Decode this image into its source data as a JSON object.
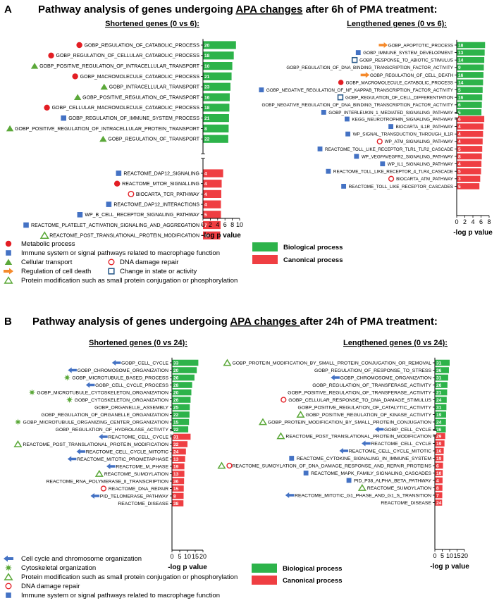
{
  "colors": {
    "bio": "#2DB34A",
    "can": "#EF3E42",
    "red": "#E31E24",
    "blue": "#4472C4",
    "green": "#5BA839",
    "orange": "#F58A2C",
    "navy": "#2A5A8A"
  },
  "panelA": {
    "letter": "A",
    "title_pre": "Pathway analysis of genes undergoing ",
    "title_ul": "APA changes",
    "title_post": " after 6h of PMA treatment:",
    "legend": [
      {
        "marker": "dot",
        "text": "Metabolic process"
      },
      {
        "marker": "sqblue",
        "text": "Immune system or signal pathways related to macrophage function"
      },
      {
        "marker": "tri",
        "text": "Cellular transport"
      },
      {
        "marker": "circ",
        "text": "DNA damage repair"
      },
      {
        "marker": "arrow",
        "text": "Regulation of cell death"
      },
      {
        "marker": "sqopen",
        "text": "Change in state or activity"
      },
      {
        "marker": "tricopen",
        "text": "Protein modification such as small protein conjugation or phosphorylation"
      }
    ],
    "box_legend": [
      {
        "color": "#2DB34A",
        "text": "Biological process"
      },
      {
        "color": "#EF3E42",
        "text": "Canonical process"
      }
    ]
  },
  "panelB": {
    "letter": "B",
    "title_pre": "Pathway analysis of genes undergoing ",
    "title_ul": "APA changes ",
    "title_post": "after 24h of PMA treatment:",
    "legend": [
      {
        "marker": "arrowblue",
        "text": "Cell cycle and chromosome organization"
      },
      {
        "marker": "star",
        "text": "Cytoskeletal organization"
      },
      {
        "marker": "tricopen",
        "text": "Protein modification such as small protein conjugation or phosphorylation"
      },
      {
        "marker": "circ",
        "text": "DNA damage repair"
      },
      {
        "marker": "sqblue",
        "text": "Immune system or signal pathways related to macrophage function"
      }
    ],
    "box_legend": [
      {
        "color": "#2DB34A",
        "text": "Biological process"
      },
      {
        "color": "#EF3E42",
        "text": "Canonical process"
      }
    ]
  },
  "chart_data": [
    {
      "type": "bar",
      "orientation": "horizontal",
      "title": "Shortened genes (0 vs 6):",
      "xlabel": "-log p value",
      "xlim": [
        0,
        10
      ],
      "ticks": [
        0,
        2,
        4,
        6,
        8,
        10
      ],
      "bio": [
        {
          "label": "GOBP_REGULATION_OF_CATABOLIC_PROCESS",
          "value": 9.0,
          "count": "20",
          "marker": "dot"
        },
        {
          "label": "GOBP_REGULATION_OF_CELLULAR_CATABOLIC_PROCESS",
          "value": 8.4,
          "count": "18",
          "marker": "dot"
        },
        {
          "label": "GOBP_POSITIVE_REGULATION_OF_INTRACELLULAR_TRANSPORT",
          "value": 8.0,
          "count": "10",
          "marker": "tri"
        },
        {
          "label": "GOBP_MACROMOLECULE_CATABOLIC_PROCESS",
          "value": 7.8,
          "count": "21",
          "marker": "dot"
        },
        {
          "label": "GOBP_INTRACELLULAR_TRANSPORT",
          "value": 7.5,
          "count": "23",
          "marker": "tri"
        },
        {
          "label": "GOBP_POSITIVE_REGULATION_OF_TRANSPORT",
          "value": 7.3,
          "count": "16",
          "marker": "tri"
        },
        {
          "label": "GOBP_CELLULAR_MACROMOLECULE_CATABOLIC_PROCESS",
          "value": 7.2,
          "count": "18",
          "marker": "dot"
        },
        {
          "label": "GOBP_REGULATION_OF_IMMUNE_SYSTEM_PROCESS",
          "value": 7.1,
          "count": "21",
          "marker": "sqblue"
        },
        {
          "label": "GOBP_POSITIVE_REGULATION_OF_INTRACELLULAR_PROTEIN_TRANSPORT",
          "value": 7.0,
          "count": "8",
          "marker": "tri"
        },
        {
          "label": "GOBP_REGULATION_OF_TRANSPORT",
          "value": 6.9,
          "count": "22",
          "marker": "tri"
        }
      ],
      "can": [
        {
          "label": "REACTOME_DAP12_SIGNALING",
          "value": 5.5,
          "count": "4",
          "marker": "sqblue"
        },
        {
          "label": "REACTOME_MTOR_SIGNALLING",
          "value": 5.1,
          "count": "4",
          "marker": "dot"
        },
        {
          "label": "BIOCARTA_TCR_PATHWAY",
          "value": 5.0,
          "count": "4",
          "marker": "circ"
        },
        {
          "label": "REACTOME_DAP12_INTERACTIONS",
          "value": 4.9,
          "count": "4",
          "marker": "sqblue"
        },
        {
          "label": "WP_B_CELL_RECEPTOR_SIGNALING_PATHWAY",
          "value": 4.9,
          "count": "5",
          "marker": "sqblue"
        },
        {
          "label": "REACTOME_PLATELET_ACTIVATION_SIGNALING_AND_AGGREGATION",
          "value": 4.8,
          "count": "7",
          "marker": "sqblue"
        },
        {
          "label": "REACTOME_POST_TRANSLATIONAL_PROTEIN_MODIFICATION",
          "value": 4.7,
          "count": "16",
          "marker": "tricopen"
        }
      ]
    },
    {
      "type": "bar",
      "orientation": "horizontal",
      "title": "Lengthened genes (0 vs 6):",
      "xlabel": "-log p value",
      "xlim": [
        0,
        8
      ],
      "ticks": [
        0,
        2,
        4,
        6,
        8
      ],
      "bio": [
        {
          "label": "GOBP_APOPTOTIC_PROCESS",
          "value": 7.0,
          "count": "18",
          "marker": "arrow"
        },
        {
          "label": "GOBP_IMMUNE_SYSTEM_DEVELOPMENT",
          "value": 6.9,
          "count": "13",
          "marker": "sqblue"
        },
        {
          "label": "GOBP_RESPONSE_TO_ABIOTIC_STIMULUS",
          "value": 6.8,
          "count": "14",
          "marker": "sqopen"
        },
        {
          "label": "GOBP_REGULATION_OF_DNA_BINDING_TRANSCRIPTION_FACTOR_ACTIVITY",
          "value": 6.7,
          "count": "9",
          "marker": "none"
        },
        {
          "label": "GOBP_REGULATION_OF_CELL_DEATH",
          "value": 6.6,
          "count": "16",
          "marker": "arrow"
        },
        {
          "label": "GOBP_MACROMOLECULE_CATABOLIC_PROCESS",
          "value": 6.5,
          "count": "14",
          "marker": "dot"
        },
        {
          "label": "GOBP_NEGATIVE_REGULATION_OF_NF_KAPPAB_TRANSCRIPTION_FACTOR_ACTIVITY",
          "value": 6.4,
          "count": "5",
          "marker": "sqblue"
        },
        {
          "label": "GOBP_REGULATION_OF_CELL_DIFFERENTIATION",
          "value": 6.3,
          "count": "16",
          "marker": "sqopen"
        },
        {
          "label": "GOBP_NEGATIVE_REGULATION_OF_DNA_BINDING_TRANSCRIPTION_FACTOR_ACTIVITY",
          "value": 6.2,
          "count": "6",
          "marker": "none"
        },
        {
          "label": "GOBP_INTERLEUKIN_1_MEDIATED_SIGNALING_PATHWAY",
          "value": 6.1,
          "count": "5",
          "marker": "sqblue"
        }
      ],
      "can": [
        {
          "label": "KEGG_NEUROTROPHIN_SIGNALING_PATHWAY",
          "value": 6.8,
          "count": "6",
          "marker": "sqblue"
        },
        {
          "label": "BIOCARTA_IL1R_PATHWAY",
          "value": 6.6,
          "count": "4",
          "marker": "sqblue"
        },
        {
          "label": "WP_SIGNAL_TRANSDUCTION_THROUGH_IL1R",
          "value": 6.5,
          "count": "4",
          "marker": "sqblue"
        },
        {
          "label": "WP_ATM_SIGNALING_PATHWAY",
          "value": 6.4,
          "count": "4",
          "marker": "circ"
        },
        {
          "label": "REACTOME_TOLL_LIKE_RECEPTOR_TLR1_TLR2_CASCADE",
          "value": 6.3,
          "count": "5",
          "marker": "sqblue"
        },
        {
          "label": "WP_VEGFAVEGFR2_SIGNALING_PATHWAY",
          "value": 6.2,
          "count": "8",
          "marker": "sqblue"
        },
        {
          "label": "WP_IL1_SIGNALING_PATHWAY",
          "value": 6.1,
          "count": "4",
          "marker": "sqblue"
        },
        {
          "label": "REACTOME_TOLL_LIKE_RECEPTOR_4_TLR4_CASCADE",
          "value": 6.0,
          "count": "5",
          "marker": "sqblue"
        },
        {
          "label": "BIOCARTA_ATM_PATHWAY",
          "value": 5.8,
          "count": "3",
          "marker": "circ"
        },
        {
          "label": "REACTOME_TOLL_LIKE_RECEPTOR_CASCADES",
          "value": 5.6,
          "count": "5",
          "marker": "sqblue"
        }
      ]
    },
    {
      "type": "bar",
      "orientation": "horizontal",
      "title": "Shortened genes (0 vs 24):",
      "xlabel": "-log p value",
      "xlim": [
        0,
        20
      ],
      "ticks": [
        0,
        5,
        10,
        15,
        20
      ],
      "bio": [
        {
          "label": "GOBP_CELL_CYCLE",
          "value": 17.0,
          "count": "33",
          "marker": "arrowblue"
        },
        {
          "label": "GOBP_CHROMOSOME_ORGANIZATION",
          "value": 16.0,
          "count": "20",
          "marker": "arrowblue"
        },
        {
          "label": "GOBP_MICROTUBULE_BASED_PROCESS",
          "value": 14.5,
          "count": "26",
          "marker": "star"
        },
        {
          "label": "GOBP_CELL_CYCLE_PROCESS",
          "value": 13.0,
          "count": "28",
          "marker": "arrowblue"
        },
        {
          "label": "GOBP_MICROTUBULE_CYTOSKELETON_ORGANIZATION",
          "value": 12.5,
          "count": "20",
          "marker": "star"
        },
        {
          "label": "GOBP_CYTOSKELETON_ORGANIZATION",
          "value": 12.0,
          "count": "26",
          "marker": "star"
        },
        {
          "label": "GOBP_ORGANELLE_ASSEMBLY",
          "value": 11.5,
          "count": "25",
          "marker": "none"
        },
        {
          "label": "GOBP_REGULATION_OF_ORGANELLE_ORGANIZATION",
          "value": 11.3,
          "count": "22",
          "marker": "none"
        },
        {
          "label": "GOBP_MICROTUBULE_ORGANIZING_CENTER_ORGANIZATION",
          "value": 11.0,
          "count": "15",
          "marker": "star"
        },
        {
          "label": "GOBP_REGULATION_OF_HYDROLASE_ACTIVITY",
          "value": 10.5,
          "count": "22",
          "marker": "none"
        }
      ],
      "can": [
        {
          "label": "REACTOME_CELL_CYCLE",
          "value": 12.0,
          "count": "31",
          "marker": "arrowblue"
        },
        {
          "label": "REACTOME_POST_TRANSLATIONAL_PROTEIN_MODIFICATION",
          "value": 10.0,
          "count": "32",
          "marker": "tricopen"
        },
        {
          "label": "REACTOME_CELL_CYCLE_MITOTIC",
          "value": 9.0,
          "count": "24",
          "marker": "arrowblue"
        },
        {
          "label": "REACTOME_MITOTIC_PROMETAPHASE",
          "value": 8.5,
          "count": "13",
          "marker": "arrowblue"
        },
        {
          "label": "REACTOME_M_PHASE",
          "value": 8.0,
          "count": "19",
          "marker": "arrowblue"
        },
        {
          "label": "REACTOME_SUMOYLATION",
          "value": 8.0,
          "count": "13",
          "marker": "tricopen"
        },
        {
          "label": "REACTOME_RNA_POLYMERASE_II_TRANSCRIPTION",
          "value": 7.8,
          "count": "36",
          "marker": "none"
        },
        {
          "label": "REACTOME_DNA_REPAIR",
          "value": 7.6,
          "count": "15",
          "marker": "circ"
        },
        {
          "label": "PID_TELOMERASE_PATHWAY",
          "value": 7.5,
          "count": "8",
          "marker": "arrowblue"
        },
        {
          "label": "REACTOME_DISEASE",
          "value": 7.4,
          "count": "38",
          "marker": "none"
        }
      ]
    },
    {
      "type": "bar",
      "orientation": "horizontal",
      "title": "Lengthened genes (0 vs 24):",
      "xlabel": "-log p value",
      "xlim": [
        0,
        20
      ],
      "ticks": [
        0,
        5,
        10,
        15,
        20
      ],
      "bio": [
        {
          "label": "GOBP_PROTEIN_MODIFICATION_BY_SMALL_PROTEIN_CONJUGATION_OR_REMOVAL",
          "value": 10.0,
          "count": "31",
          "marker": "tricopen"
        },
        {
          "label": "GOBP_REGULATION_OF_RESPONSE_TO_STRESS",
          "value": 9.5,
          "count": "36",
          "marker": "none"
        },
        {
          "label": "GOBP_CHROMOSOME_ORGANIZATION",
          "value": 9.0,
          "count": "31",
          "marker": "arrowblue"
        },
        {
          "label": "GOBP_REGULATION_OF_TRANSFERASE_ACTIVITY",
          "value": 8.5,
          "count": "26",
          "marker": "none"
        },
        {
          "label": "GOBP_POSITIVE_REGULATION_OF_TRANSFERASE_ACTIVITY",
          "value": 8.3,
          "count": "21",
          "marker": "none"
        },
        {
          "label": "GOBP_CELLULAR_RESPONSE_TO_DNA_DAMAGE_STIMULUS",
          "value": 8.0,
          "count": "24",
          "marker": "circ"
        },
        {
          "label": "GOBP_POSITIVE_REGULATION_OF_CATALYTIC_ACTIVITY",
          "value": 7.8,
          "count": "31",
          "marker": "none"
        },
        {
          "label": "GOBP_POSITIVE_REGULATION_OF_KINASE_ACTIVITY",
          "value": 7.6,
          "count": "19",
          "marker": "tricopen"
        },
        {
          "label": "GOBP_PROTEIN_MODIFICATION_BY_SMALL_PROTEIN_CONJUGATION",
          "value": 7.5,
          "count": "24",
          "marker": "tricopen"
        },
        {
          "label": "GOBP_CELL_CYCLE",
          "value": 7.4,
          "count": "36",
          "marker": "arrowblue"
        }
      ],
      "can": [
        {
          "label": "REACTOME_POST_TRANSLATIONAL_PROTEIN_MODIFICATION",
          "value": 7.0,
          "count": "29",
          "marker": "tricopen"
        },
        {
          "label": "REACTOME_CELL_CYCLE",
          "value": 6.5,
          "count": "19",
          "marker": "arrowblue"
        },
        {
          "label": "REACTOME_CELL_CYCLE_MITOTIC",
          "value": 6.0,
          "count": "16",
          "marker": "arrowblue"
        },
        {
          "label": "REACTOME_CYTOKINE_SIGNALING_IN_IMMUNE_SYSTEM",
          "value": 5.8,
          "count": "19",
          "marker": "sqblue"
        },
        {
          "label": "REACTOME_SUMOYLATION_OF_DNA_DAMAGE_RESPONSE_AND_REPAIR_PROTEINS",
          "value": 5.5,
          "count": "6",
          "marker": "tricopen-circ"
        },
        {
          "label": "REACTOME_MAPK_FAMILY_SIGNALING_CASCADES",
          "value": 5.3,
          "count": "10",
          "marker": "sqblue"
        },
        {
          "label": "PID_P38_ALPHA_BETA_PATHWAY",
          "value": 5.2,
          "count": "4",
          "marker": "sqblue"
        },
        {
          "label": "REACTOME_SUMOYLATION",
          "value": 5.1,
          "count": "8",
          "marker": "tricopen"
        },
        {
          "label": "REACTOME_MITOTIC_G1_PHASE_AND_G1_S_TRANSITION",
          "value": 5.0,
          "count": "7",
          "marker": "arrowblue"
        },
        {
          "label": "REACTOME_DISEASE",
          "value": 4.9,
          "count": "24",
          "marker": "none"
        }
      ]
    }
  ]
}
